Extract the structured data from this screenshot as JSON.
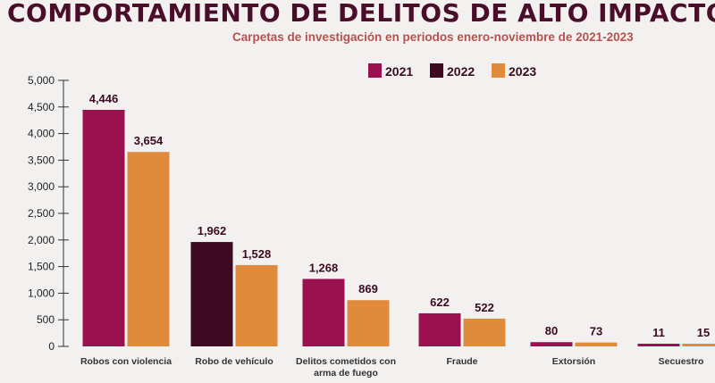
{
  "chart_data": {
    "type": "bar",
    "title": "COMPORTAMIENTO DE DELITOS DE ALTO IMPACTO",
    "subtitle": "Carpetas de investigación en periodos enero-noviembre de 2021-2023",
    "categories": [
      "Robos con violencia",
      "Robo de vehículo",
      "Delitos cometidos con arma de fuego",
      "Fraude",
      "Extorsión",
      "Secuestro"
    ],
    "category_lines": [
      [
        "Robos con violencia"
      ],
      [
        "Robo de vehículo"
      ],
      [
        "Delitos cometidos con",
        "arma de fuego"
      ],
      [
        "Fraude"
      ],
      [
        "Extorsión"
      ],
      [
        "Secuestro"
      ]
    ],
    "series": [
      {
        "name": "2021",
        "color": "#9b1150",
        "values": [
          4446,
          null,
          1268,
          622,
          80,
          11
        ]
      },
      {
        "name": "2022",
        "color": "#3d0a22",
        "values": [
          null,
          1962,
          null,
          null,
          null,
          null
        ]
      },
      {
        "name": "2023",
        "color": "#e08a3c",
        "values": [
          3654,
          1528,
          869,
          522,
          73,
          15
        ]
      }
    ],
    "data_labels": [
      [
        "4,446",
        "3,654"
      ],
      [
        "1,962",
        "1,528"
      ],
      [
        "1,268",
        "869"
      ],
      [
        "622",
        "522"
      ],
      [
        "80",
        "73"
      ],
      [
        "11",
        "15"
      ]
    ],
    "ylim": [
      0,
      5000
    ],
    "yticks": [
      "0",
      "500",
      "1,000",
      "1,500",
      "2,000",
      "2,500",
      "3,000",
      "3,500",
      "4,000",
      "4,500",
      "5,000"
    ],
    "legend_position": "top-center",
    "grid": false
  }
}
